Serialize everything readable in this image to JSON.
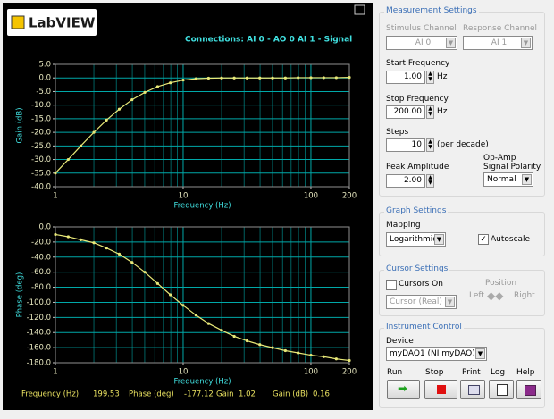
{
  "window": {
    "logo": "LabVIEW",
    "connections": "Connections: AI 0 - AO 0   AI 1 - Signal"
  },
  "readout": {
    "frequency_label": "Frequency (Hz)",
    "frequency": "199.53",
    "phase_label": "Phase (deg)",
    "phase": "-177.12",
    "gain_label": "Gain",
    "gain": "1.02",
    "gain_db_label": "Gain (dB)",
    "gain_db": "0.16"
  },
  "chart_data": [
    {
      "type": "line",
      "y_label": "Gain (dB)",
      "x_label": "Frequency (Hz)",
      "color": "#e8e878",
      "log_x": true,
      "grid": true,
      "x": [
        1,
        1.26,
        1.58,
        2,
        2.51,
        3.16,
        3.98,
        5.01,
        6.31,
        7.94,
        10,
        12.6,
        15.8,
        20,
        25.1,
        31.6,
        39.8,
        50.1,
        63.1,
        79.4,
        100,
        126,
        158,
        200
      ],
      "values": [
        -35,
        -30,
        -25,
        -20,
        -15.5,
        -11.5,
        -8,
        -5.3,
        -3.2,
        -1.8,
        -0.8,
        -0.3,
        -0.1,
        0,
        0,
        0,
        0,
        0,
        0,
        0.1,
        0.1,
        0.1,
        0.1,
        0.2
      ],
      "xlim": [
        1,
        200
      ],
      "ylim": [
        -40,
        5
      ],
      "xticks": [
        1,
        10,
        100,
        200
      ],
      "minor_xticks": [
        2,
        3,
        4,
        5,
        6,
        7,
        8,
        9,
        20,
        30,
        40,
        50,
        60,
        70,
        80,
        90
      ],
      "yticks": [
        {
          "value": 5,
          "label": "5.0"
        },
        {
          "value": 0,
          "label": "0.0"
        },
        {
          "value": -5,
          "label": "-5.0"
        },
        {
          "value": -10,
          "label": "-10.0"
        },
        {
          "value": -15,
          "label": "-15.0"
        },
        {
          "value": -20,
          "label": "-20.0"
        },
        {
          "value": -25,
          "label": "-25.0"
        },
        {
          "value": -30,
          "label": "-30.0"
        },
        {
          "value": -35,
          "label": "-35.0"
        },
        {
          "value": -40,
          "label": "-40.0"
        }
      ]
    },
    {
      "type": "line",
      "y_label": "Phase (deg)",
      "x_label": "Frequency (Hz)",
      "color": "#e8e878",
      "log_x": true,
      "grid": true,
      "x": [
        1,
        1.26,
        1.58,
        2,
        2.51,
        3.16,
        3.98,
        5.01,
        6.31,
        7.94,
        10,
        12.6,
        15.8,
        20,
        25.1,
        31.6,
        39.8,
        50.1,
        63.1,
        79.4,
        100,
        126,
        158,
        200
      ],
      "values": [
        -10,
        -13,
        -17,
        -21,
        -28,
        -36,
        -47,
        -60,
        -75,
        -90,
        -104,
        -117,
        -128,
        -137,
        -145,
        -151,
        -156,
        -160,
        -164,
        -167,
        -170,
        -172,
        -175,
        -177
      ],
      "xlim": [
        1,
        200
      ],
      "ylim": [
        -180,
        0
      ],
      "xticks": [
        1,
        10,
        100,
        200
      ],
      "minor_xticks": [
        2,
        3,
        4,
        5,
        6,
        7,
        8,
        9,
        20,
        30,
        40,
        50,
        60,
        70,
        80,
        90
      ],
      "yticks": [
        {
          "value": 0,
          "label": "0.0"
        },
        {
          "value": -20,
          "label": "-20.0"
        },
        {
          "value": -40,
          "label": "-40.0"
        },
        {
          "value": -60,
          "label": "-60.0"
        },
        {
          "value": -80,
          "label": "-80.0"
        },
        {
          "value": -100,
          "label": "-100.0"
        },
        {
          "value": -120,
          "label": "-120.0"
        },
        {
          "value": -140,
          "label": "-140.0"
        },
        {
          "value": -160,
          "label": "-160.0"
        },
        {
          "value": -180,
          "label": "-180.0"
        }
      ]
    }
  ],
  "measurement": {
    "title": "Measurement Settings",
    "stimulus_label": "Stimulus Channel",
    "stimulus": "AI 0",
    "response_label": "Response Channel",
    "response": "AI 1",
    "start_label": "Start Frequency",
    "start": "1.00",
    "start_unit": "Hz",
    "stop_label": "Stop Frequency",
    "stop": "200.00",
    "stop_unit": "Hz",
    "steps_label": "Steps",
    "steps": "10",
    "steps_unit": "(per decade)",
    "amplitude_label": "Peak Amplitude",
    "amplitude": "2.00",
    "polarity_label_1": "Op-Amp",
    "polarity_label_2": "Signal Polarity",
    "polarity": "Normal"
  },
  "graph": {
    "title": "Graph Settings",
    "mapping_label": "Mapping",
    "mapping": "Logarithmic",
    "autoscale": "Autoscale"
  },
  "cursor": {
    "title": "Cursor Settings",
    "cursors_on": "Cursors On",
    "cursor": "Cursor (Real)",
    "position": "Position",
    "left": "Left",
    "right": "Right"
  },
  "instrument": {
    "title": "Instrument Control",
    "device_label": "Device",
    "device": "myDAQ1 (NI myDAQ)",
    "run": "Run",
    "stop": "Stop",
    "print": "Print",
    "log": "Log",
    "help": "Help"
  }
}
